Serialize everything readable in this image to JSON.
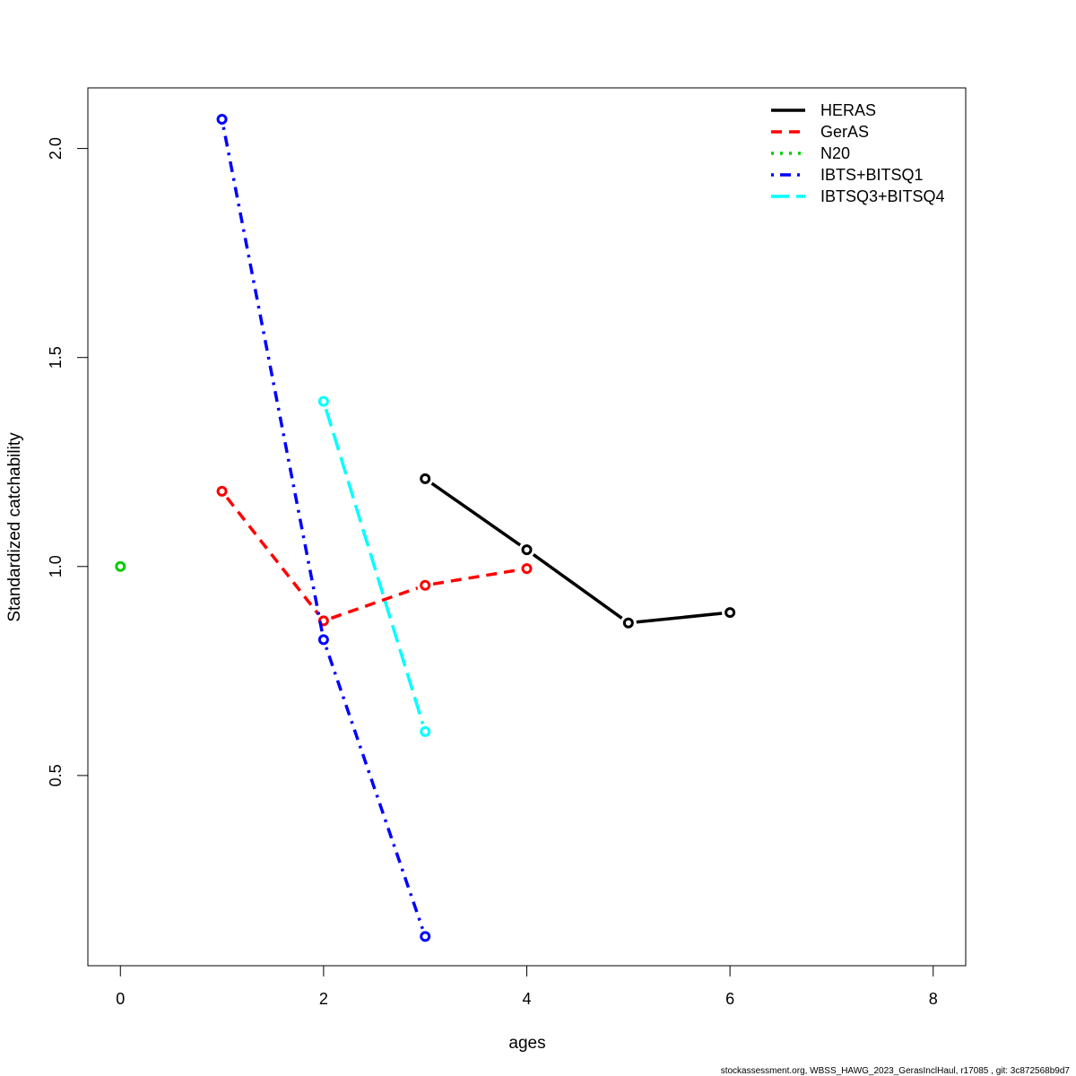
{
  "chart_data": {
    "type": "line",
    "title": "",
    "xlabel": "ages",
    "ylabel": "Standardized catchability",
    "xlim": [
      -0.32,
      8.32
    ],
    "ylim": [
      0.045,
      2.145
    ],
    "x_ticks": [
      0,
      2,
      4,
      6,
      8
    ],
    "y_ticks": [
      0.5,
      1.0,
      1.5,
      2.0
    ],
    "x_tick_labels": [
      "0",
      "2",
      "4",
      "6",
      "8"
    ],
    "y_tick_labels": [
      "0.5",
      "1.0",
      "1.5",
      "2.0"
    ],
    "legend_position": "top-right",
    "grid": false,
    "series": [
      {
        "name": "HERAS",
        "color": "#000000",
        "line_style": "solid",
        "x": [
          3,
          4,
          5,
          6
        ],
        "y": [
          1.21,
          1.04,
          0.865,
          0.89
        ]
      },
      {
        "name": "GerAS",
        "color": "#ff0000",
        "line_style": "dashed",
        "x": [
          1,
          2,
          3,
          4
        ],
        "y": [
          1.18,
          0.87,
          0.955,
          0.995
        ]
      },
      {
        "name": "N20",
        "color": "#00cd00",
        "line_style": "dotted",
        "x": [
          0
        ],
        "y": [
          1.0
        ]
      },
      {
        "name": "IBTS+BITSQ1",
        "color": "#0000ff",
        "line_style": "dotdash",
        "x": [
          1,
          2,
          3
        ],
        "y": [
          2.07,
          0.825,
          0.115
        ]
      },
      {
        "name": "IBTSQ3+BITSQ4",
        "color": "#00ffff",
        "line_style": "longdash",
        "x": [
          2,
          3
        ],
        "y": [
          1.395,
          0.605
        ]
      }
    ]
  },
  "footer": {
    "text": "stockassessment.org, WBSS_HAWG_2023_GerasInclHaul, r17085 , git: 3c872568b9d7"
  }
}
